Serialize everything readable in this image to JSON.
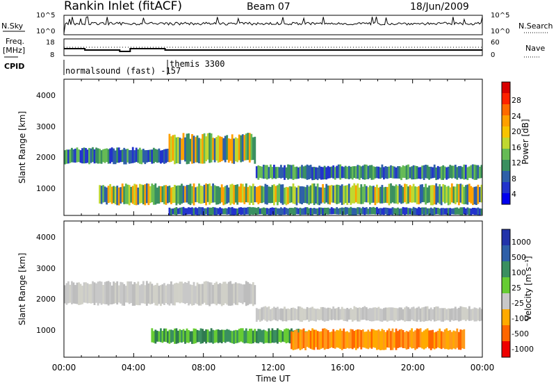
{
  "header": {
    "station": "Rankin Inlet (fitACF)",
    "beam": "Beam 07",
    "date": "18/Jun/2009"
  },
  "status_panels": {
    "nsky_label": "N.Sky",
    "nsky_ticks": [
      "10^5",
      "10^0"
    ],
    "nsearch_label": "N.Search",
    "nsearch_ticks": [
      "10^5",
      "10^0"
    ],
    "freq_label": "Freq.",
    "freq_unit": "[MHz]",
    "freq_ticks": [
      "18",
      "8"
    ],
    "nave_label": "Nave",
    "nave_ticks": [
      "60",
      "0"
    ],
    "cpid_label": "CPID",
    "cpid_entries": [
      "normalsound (fast) -157",
      "themis 3300"
    ]
  },
  "chart_data": [
    {
      "type": "heatmap",
      "title": "",
      "xlabel": "",
      "ylabel": "Slant Range [km]",
      "ylim": [
        180,
        4500
      ],
      "yticks": [
        "1000",
        "2000",
        "3000",
        "4000"
      ],
      "colorbar_label": "Power [dB]",
      "colorbar_ticks": [
        "28",
        "24",
        "20",
        "16",
        "12",
        "8",
        "4"
      ],
      "colorbar_colors": [
        "#d80000",
        "#ff2200",
        "#ff6a00",
        "#ffa000",
        "#f7c400",
        "#c0d830",
        "#66bb55",
        "#3a8f60",
        "#2e5fa8",
        "#2233cc",
        "#0000ee"
      ],
      "bands": [
        {
          "t": [
            0,
            6
          ],
          "r": [
            1800,
            2350
          ],
          "level": "mid"
        },
        {
          "t": [
            6,
            11
          ],
          "r": [
            1800,
            2800
          ],
          "level": "high"
        },
        {
          "t": [
            11,
            24
          ],
          "r": [
            1300,
            1800
          ],
          "level": "mid"
        },
        {
          "t": [
            2,
            24
          ],
          "r": [
            500,
            1200
          ],
          "level": "high"
        },
        {
          "t": [
            6,
            24
          ],
          "r": [
            180,
            450
          ],
          "level": "low"
        }
      ]
    },
    {
      "type": "heatmap",
      "title": "",
      "xlabel": "Time UT",
      "ylabel": "Slant Range [km]",
      "ylim": [
        180,
        4500
      ],
      "yticks": [
        "1000",
        "2000",
        "3000",
        "4000"
      ],
      "xticks": [
        "00:00",
        "04:00",
        "08:00",
        "12:00",
        "16:00",
        "20:00",
        "00:00"
      ],
      "colorbar_label": "Velocity [m s⁻¹]",
      "colorbar_ticks": [
        "1000",
        "500",
        "100",
        "25",
        "-25",
        "-100",
        "-500",
        "-1000"
      ],
      "colorbar_colors": [
        "#2233aa",
        "#2e5fa8",
        "#3a8f60",
        "#66cc33",
        "#c8c8c8",
        "#ffaa00",
        "#ff6600",
        "#ee0000"
      ],
      "bands": [
        {
          "t": [
            0,
            11
          ],
          "r": [
            1800,
            2600
          ],
          "level": "gray"
        },
        {
          "t": [
            11,
            24
          ],
          "r": [
            1300,
            1800
          ],
          "level": "gray"
        },
        {
          "t": [
            5,
            14
          ],
          "r": [
            600,
            1100
          ],
          "level": "green"
        },
        {
          "t": [
            13,
            23
          ],
          "r": [
            400,
            1100
          ],
          "level": "orange"
        }
      ]
    }
  ]
}
